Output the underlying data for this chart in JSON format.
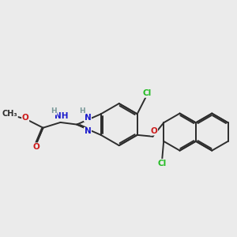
{
  "background_color": "#ebebeb",
  "bond_color": "#2d2d2d",
  "bond_width": 1.4,
  "atom_colors": {
    "N": "#1a1acc",
    "O": "#cc1a1a",
    "Cl": "#22bb22",
    "H": "#7a9a9a",
    "C": "#2d2d2d"
  },
  "font_size_atom": 7.5,
  "font_size_small": 6.5
}
